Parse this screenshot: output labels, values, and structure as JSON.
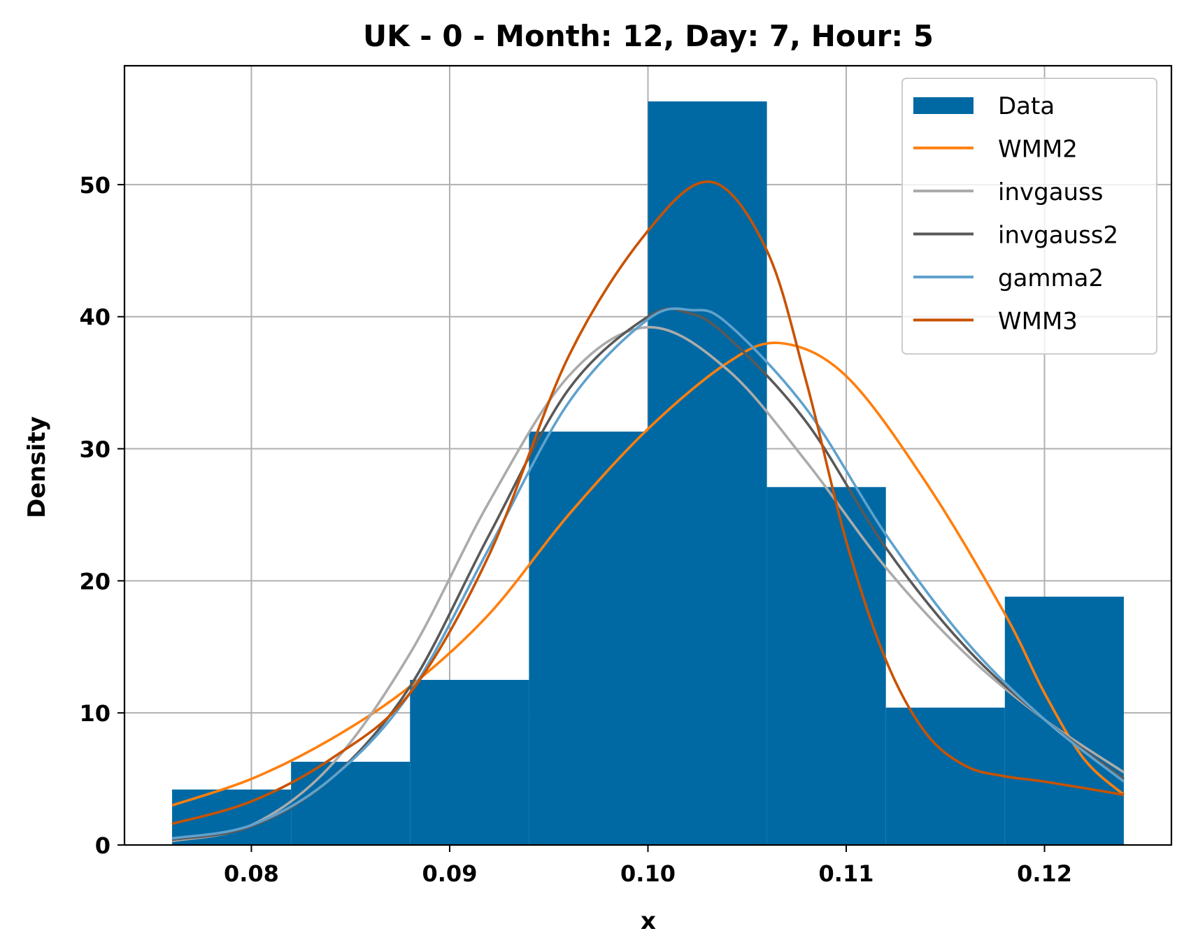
{
  "chart_data": {
    "type": "bar",
    "title": "UK - 0 - Month: 12, Day: 7, Hour: 5",
    "xlabel": "x",
    "ylabel": "Density",
    "xlim": [
      0.0736,
      0.1264
    ],
    "ylim": [
      0,
      59
    ],
    "xticks": [
      0.08,
      0.09,
      0.1,
      0.11,
      0.12
    ],
    "xtick_labels": [
      "0.08",
      "0.09",
      "0.10",
      "0.11",
      "0.12"
    ],
    "yticks": [
      0,
      10,
      20,
      30,
      40,
      50
    ],
    "ytick_labels": [
      "0",
      "10",
      "20",
      "30",
      "40",
      "50"
    ],
    "grid": true,
    "legend_position": "top-right",
    "histogram": {
      "name": "Data",
      "color": "#0069a3",
      "bins": [
        {
          "x0": 0.076,
          "x1": 0.082,
          "value": 4.2
        },
        {
          "x0": 0.082,
          "x1": 0.088,
          "value": 6.3
        },
        {
          "x0": 0.088,
          "x1": 0.094,
          "value": 12.5
        },
        {
          "x0": 0.094,
          "x1": 0.1,
          "value": 31.3
        },
        {
          "x0": 0.1,
          "x1": 0.106,
          "value": 56.3
        },
        {
          "x0": 0.106,
          "x1": 0.112,
          "value": 27.1
        },
        {
          "x0": 0.112,
          "x1": 0.118,
          "value": 10.4
        },
        {
          "x0": 0.118,
          "x1": 0.124,
          "value": 18.8
        }
      ]
    },
    "series": [
      {
        "name": "WMM2",
        "color": "#ff7f0e",
        "x": [
          0.076,
          0.08,
          0.084,
          0.088,
          0.092,
          0.096,
          0.1,
          0.104,
          0.1067,
          0.11,
          0.114,
          0.118,
          0.12,
          0.122,
          0.124
        ],
        "y": [
          3.0,
          5.0,
          8.0,
          12.0,
          17.5,
          25.0,
          31.5,
          36.5,
          38.0,
          35.5,
          27.5,
          17.5,
          11.5,
          6.5,
          3.8
        ]
      },
      {
        "name": "invgauss",
        "color": "#ababab",
        "x": [
          0.076,
          0.08,
          0.084,
          0.088,
          0.092,
          0.096,
          0.1,
          0.104,
          0.108,
          0.112,
          0.116,
          0.12,
          0.124
        ],
        "y": [
          0.3,
          1.5,
          6.0,
          14.5,
          26.0,
          35.5,
          39.2,
          36.0,
          29.0,
          21.0,
          14.5,
          9.5,
          5.5
        ]
      },
      {
        "name": "invgauss2",
        "color": "#595959",
        "x": [
          0.076,
          0.08,
          0.084,
          0.088,
          0.092,
          0.096,
          0.1,
          0.102,
          0.104,
          0.108,
          0.112,
          0.116,
          0.12,
          0.124
        ],
        "y": [
          0.4,
          1.4,
          5.0,
          12.0,
          23.5,
          34.5,
          40.0,
          40.3,
          38.5,
          32.0,
          22.5,
          15.0,
          9.5,
          5.0
        ]
      },
      {
        "name": "gamma2",
        "color": "#5fa2ce",
        "x": [
          0.076,
          0.08,
          0.084,
          0.088,
          0.092,
          0.096,
          0.1,
          0.1022,
          0.104,
          0.108,
          0.112,
          0.116,
          0.12,
          0.124
        ],
        "y": [
          0.5,
          1.5,
          5.0,
          11.5,
          22.5,
          33.5,
          39.8,
          40.5,
          39.5,
          33.0,
          23.5,
          15.5,
          9.5,
          4.8
        ]
      },
      {
        "name": "WMM3",
        "color": "#c85200",
        "x": [
          0.076,
          0.08,
          0.084,
          0.088,
          0.092,
          0.096,
          0.1,
          0.1032,
          0.106,
          0.108,
          0.11,
          0.112,
          0.114,
          0.116,
          0.118,
          0.12,
          0.124
        ],
        "y": [
          1.6,
          3.3,
          6.5,
          11.5,
          22.0,
          37.0,
          46.5,
          50.2,
          45.0,
          35.0,
          23.0,
          14.0,
          8.5,
          6.0,
          5.2,
          4.8,
          3.8
        ]
      }
    ]
  }
}
